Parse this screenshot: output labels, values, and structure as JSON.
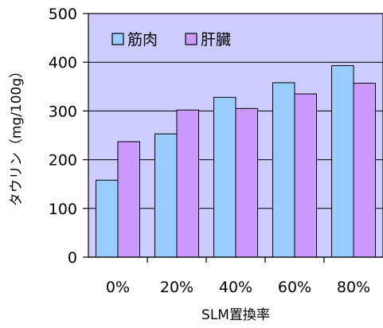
{
  "chart_data": {
    "type": "bar",
    "title": "",
    "xlabel": "SLM置換率",
    "ylabel": "タウリン（mg/100g）",
    "categories": [
      "0%",
      "20%",
      "40%",
      "60%",
      "80%"
    ],
    "series": [
      {
        "name": "筋肉",
        "values": [
          158,
          253,
          328,
          358,
          393
        ],
        "color": "#99ccff"
      },
      {
        "name": "肝臓",
        "values": [
          237,
          302,
          305,
          335,
          357
        ],
        "color": "#cc99ff"
      }
    ],
    "ylim": [
      0,
      500
    ],
    "yticks": [
      0,
      100,
      200,
      300,
      400,
      500
    ],
    "grid": true,
    "legend_position": "top-left",
    "plot_background": "#ccccff"
  }
}
